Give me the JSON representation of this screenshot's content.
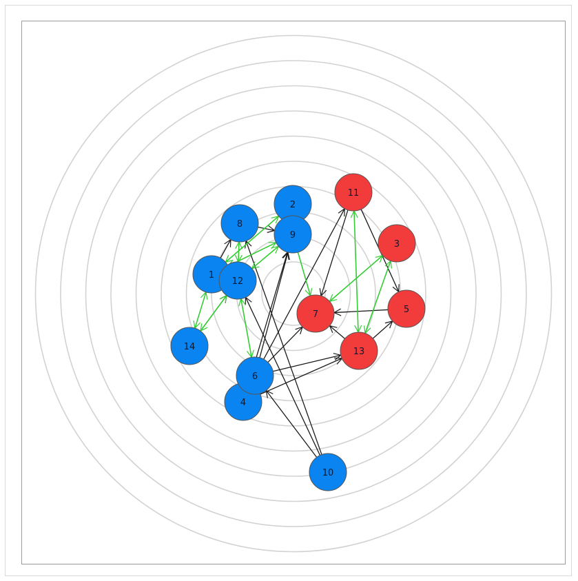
{
  "colors": {
    "blue_node": "#0a84f0",
    "red_node": "#f23b3b",
    "ring": "#d2d2d2",
    "edge_black": "#1a1a1a",
    "edge_green": "#33cc33",
    "node_stroke": "#555555"
  },
  "rings": 10,
  "nodes": [
    {
      "id": "1",
      "label": "1",
      "group": "blue"
    },
    {
      "id": "2",
      "label": "2",
      "group": "blue"
    },
    {
      "id": "3",
      "label": "3",
      "group": "red"
    },
    {
      "id": "4",
      "label": "4",
      "group": "blue"
    },
    {
      "id": "5",
      "label": "5",
      "group": "red"
    },
    {
      "id": "6",
      "label": "6",
      "group": "blue"
    },
    {
      "id": "7",
      "label": "7",
      "group": "red"
    },
    {
      "id": "8",
      "label": "8",
      "group": "blue"
    },
    {
      "id": "9",
      "label": "9",
      "group": "blue"
    },
    {
      "id": "10",
      "label": "10",
      "group": "blue"
    },
    {
      "id": "11",
      "label": "11",
      "group": "red"
    },
    {
      "id": "12",
      "label": "12",
      "group": "blue"
    },
    {
      "id": "13",
      "label": "13",
      "group": "red"
    },
    {
      "id": "14",
      "label": "14",
      "group": "blue"
    }
  ],
  "edges": [
    {
      "from": "8",
      "to": "9",
      "color": "black",
      "bidirectional": false
    },
    {
      "from": "1",
      "to": "8",
      "color": "black",
      "bidirectional": false
    },
    {
      "from": "14",
      "to": "12",
      "color": "black",
      "bidirectional": false
    },
    {
      "from": "10",
      "to": "6",
      "color": "black",
      "bidirectional": false
    },
    {
      "from": "10",
      "to": "12",
      "color": "black",
      "bidirectional": false
    },
    {
      "from": "10",
      "to": "8",
      "color": "black",
      "bidirectional": false
    },
    {
      "from": "6",
      "to": "11",
      "color": "black",
      "bidirectional": false
    },
    {
      "from": "6",
      "to": "13",
      "color": "black",
      "bidirectional": false
    },
    {
      "from": "4",
      "to": "13",
      "color": "black",
      "bidirectional": false
    },
    {
      "from": "6",
      "to": "9",
      "color": "black",
      "bidirectional": false
    },
    {
      "from": "4",
      "to": "9",
      "color": "black",
      "bidirectional": false
    },
    {
      "from": "6",
      "to": "7",
      "color": "black",
      "bidirectional": false
    },
    {
      "from": "11",
      "to": "7",
      "color": "black",
      "bidirectional": false
    },
    {
      "from": "11",
      "to": "5",
      "color": "black",
      "bidirectional": false
    },
    {
      "from": "5",
      "to": "7",
      "color": "black",
      "bidirectional": false
    },
    {
      "from": "13",
      "to": "5",
      "color": "black",
      "bidirectional": false
    },
    {
      "from": "13",
      "to": "7",
      "color": "black",
      "bidirectional": false
    },
    {
      "from": "1",
      "to": "2",
      "color": "green",
      "bidirectional": true
    },
    {
      "from": "1",
      "to": "9",
      "color": "green",
      "bidirectional": true
    },
    {
      "from": "8",
      "to": "12",
      "color": "green",
      "bidirectional": true
    },
    {
      "from": "12",
      "to": "9",
      "color": "green",
      "bidirectional": true
    },
    {
      "from": "1",
      "to": "14",
      "color": "green",
      "bidirectional": true
    },
    {
      "from": "12",
      "to": "14",
      "color": "green",
      "bidirectional": true
    },
    {
      "from": "12",
      "to": "6",
      "color": "green",
      "bidirectional": true
    },
    {
      "from": "9",
      "to": "7",
      "color": "green",
      "bidirectional": false
    },
    {
      "from": "11",
      "to": "13",
      "color": "green",
      "bidirectional": true
    },
    {
      "from": "3",
      "to": "7",
      "color": "green",
      "bidirectional": true
    },
    {
      "from": "3",
      "to": "13",
      "color": "green",
      "bidirectional": true
    }
  ]
}
